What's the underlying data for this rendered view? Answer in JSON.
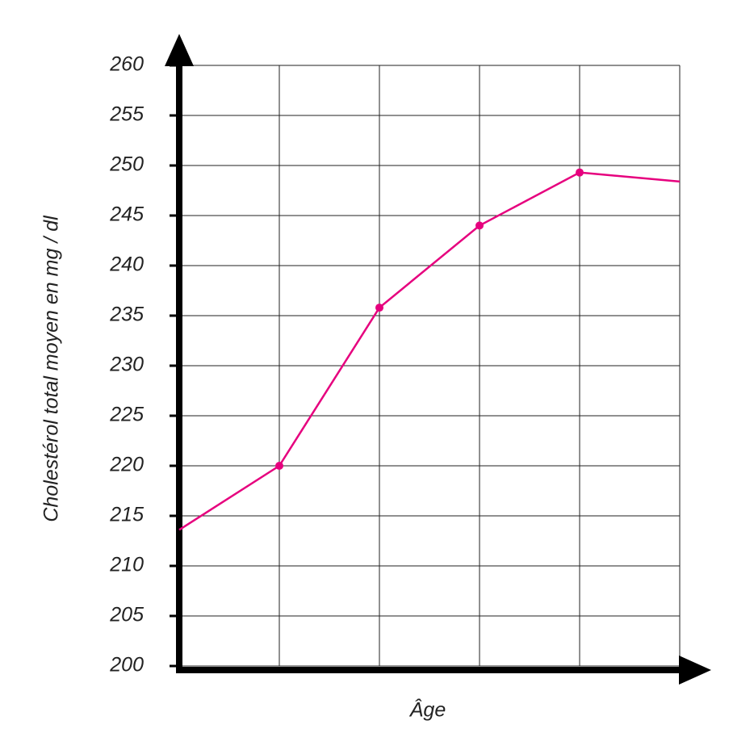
{
  "chart_data": {
    "type": "line",
    "y_label": "Cholestérol total moyen en mg / dl",
    "x_label": "Âge",
    "categories": [
      null,
      null,
      null,
      null,
      null,
      null
    ],
    "series": [
      {
        "color": "#e6007e",
        "values": [
          213.6,
          220,
          235.8,
          244,
          249.3,
          248.4
        ]
      }
    ],
    "marker_indices": [
      1,
      2,
      3,
      4
    ],
    "ylim": [
      200,
      260
    ],
    "yticks": [
      200,
      205,
      210,
      215,
      220,
      225,
      230,
      235,
      240,
      245,
      250,
      255,
      260
    ],
    "grid": true
  }
}
